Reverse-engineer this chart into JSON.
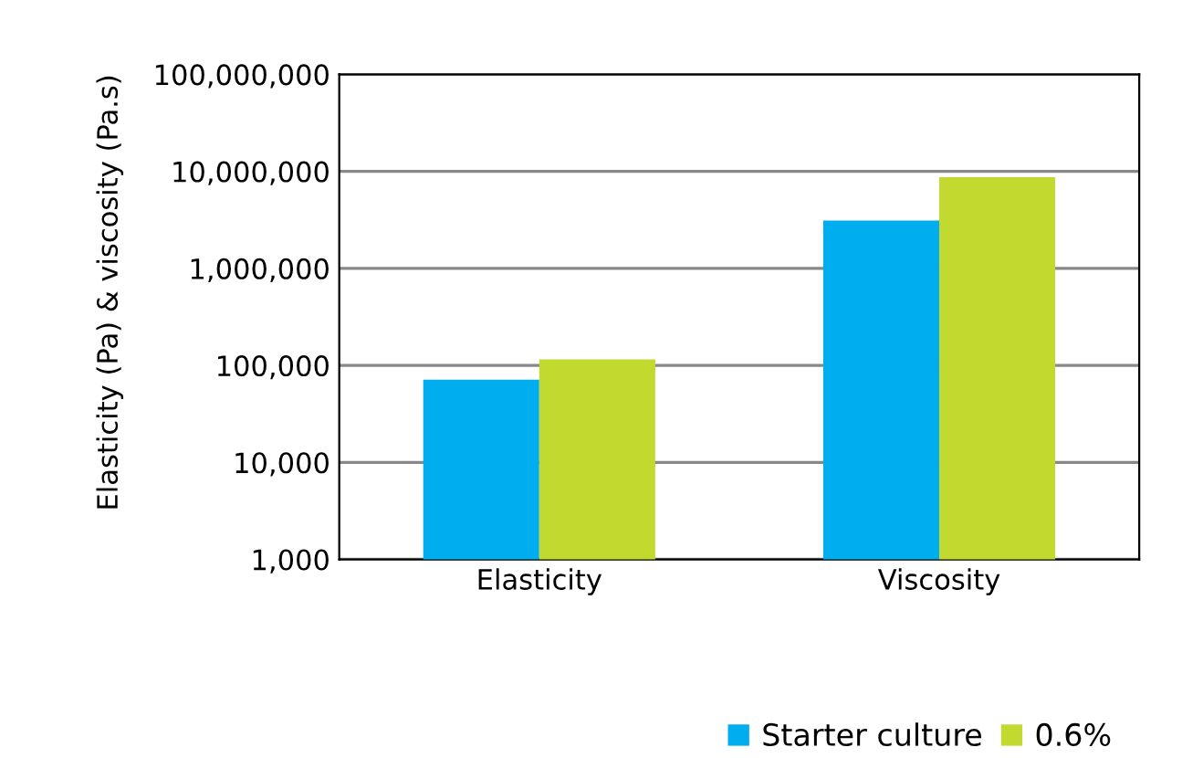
{
  "chart_data": {
    "type": "bar",
    "ylabel": "Elasticity (Pa) & viscosity (Pa.s)",
    "categories": [
      "Elasticity",
      "Viscosity"
    ],
    "series": [
      {
        "name": "Starter culture",
        "color": "#00aeef",
        "values": [
          71000,
          3100000
        ]
      },
      {
        "name": "0.6%",
        "color": "#c2d92f",
        "values": [
          115000,
          8700000
        ]
      }
    ],
    "log": true,
    "ylim": [
      1000,
      100000000
    ],
    "yticks": [
      {
        "value": 1000,
        "label": "1,000"
      },
      {
        "value": 10000,
        "label": "10,000"
      },
      {
        "value": 100000,
        "label": "100,000"
      },
      {
        "value": 1000000,
        "label": "1,000,000"
      },
      {
        "value": 10000000,
        "label": "10,000,000"
      },
      {
        "value": 100000000,
        "label": "100,000,000"
      }
    ],
    "grid": "y",
    "legend": "bottom right"
  }
}
